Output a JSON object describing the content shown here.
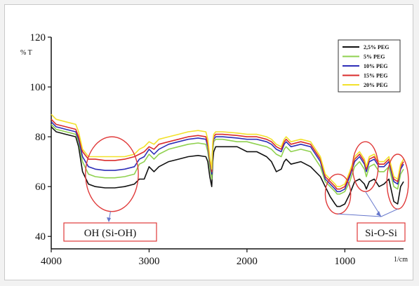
{
  "chart_data": {
    "type": "line",
    "xlabel": "1/cm",
    "ylabel": "% T",
    "xlim": [
      4000,
      400
    ],
    "ylim": [
      35,
      120
    ],
    "x_ticks": [
      "4000",
      "3000",
      "2000",
      "1000"
    ],
    "y_ticks": [
      "120",
      "100",
      "80",
      "60",
      "40"
    ],
    "legend_position": "top-right",
    "series": [
      {
        "name": "2,5% PEG",
        "color": "#111111",
        "x": [
          4000,
          3950,
          3850,
          3750,
          3720,
          3680,
          3620,
          3550,
          3450,
          3350,
          3250,
          3150,
          3100,
          3050,
          3000,
          2950,
          2900,
          2800,
          2700,
          2600,
          2500,
          2420,
          2400,
          2380,
          2360,
          2350,
          2340,
          2320,
          2300,
          2250,
          2100,
          2000,
          1900,
          1800,
          1750,
          1700,
          1650,
          1620,
          1600,
          1550,
          1450,
          1350,
          1250,
          1200,
          1150,
          1100,
          1080,
          1050,
          1000,
          950,
          900,
          850,
          800,
          780,
          750,
          700,
          650,
          600,
          550,
          500,
          460,
          430,
          400
        ],
        "y": [
          84,
          82,
          81,
          80,
          76,
          66,
          61,
          60,
          59.5,
          59.5,
          60,
          61,
          63,
          63,
          68,
          66,
          68,
          70,
          71,
          72,
          72.5,
          72,
          70,
          64,
          60,
          70,
          74,
          76,
          76,
          76,
          76,
          74,
          74,
          72,
          70,
          66,
          67,
          70,
          71,
          69,
          70,
          68,
          64,
          60,
          56,
          53,
          52,
          52,
          53,
          57,
          62,
          63,
          61,
          59,
          62,
          63,
          60,
          61,
          63,
          54,
          53,
          60,
          62
        ]
      },
      {
        "name": "5% PEG",
        "color": "#8fd14f",
        "x": [
          4000,
          3950,
          3850,
          3750,
          3720,
          3680,
          3620,
          3550,
          3450,
          3350,
          3250,
          3150,
          3100,
          3050,
          3000,
          2950,
          2900,
          2800,
          2700,
          2600,
          2500,
          2420,
          2400,
          2380,
          2360,
          2350,
          2340,
          2320,
          2300,
          2250,
          2100,
          2000,
          1900,
          1800,
          1750,
          1700,
          1650,
          1620,
          1600,
          1550,
          1450,
          1350,
          1250,
          1200,
          1150,
          1100,
          1080,
          1050,
          1000,
          950,
          900,
          850,
          800,
          780,
          750,
          700,
          650,
          600,
          550,
          500,
          460,
          430,
          400
        ],
        "y": [
          85,
          83,
          82,
          81,
          78,
          70,
          65,
          64,
          63.5,
          63.5,
          64,
          65,
          69,
          70,
          73,
          71,
          73,
          75,
          76,
          77,
          77.5,
          77,
          74,
          68,
          63,
          74,
          78,
          79,
          79,
          79,
          78,
          78,
          77,
          76,
          75,
          73,
          72,
          75,
          76,
          74,
          75,
          74,
          68,
          62,
          60,
          58,
          57,
          57,
          58,
          62,
          68,
          70,
          67,
          64,
          68,
          69,
          66,
          66,
          68,
          60,
          59,
          65,
          67
        ]
      },
      {
        "name": "10% PEG",
        "color": "#2e2eb8",
        "x": [
          4000,
          3950,
          3850,
          3750,
          3720,
          3680,
          3620,
          3550,
          3450,
          3350,
          3250,
          3150,
          3100,
          3050,
          3000,
          2950,
          2900,
          2800,
          2700,
          2600,
          2500,
          2420,
          2400,
          2380,
          2360,
          2350,
          2340,
          2320,
          2300,
          2250,
          2100,
          2000,
          1900,
          1800,
          1750,
          1700,
          1650,
          1620,
          1600,
          1550,
          1450,
          1350,
          1250,
          1200,
          1150,
          1100,
          1080,
          1050,
          1000,
          950,
          900,
          850,
          800,
          780,
          750,
          700,
          650,
          600,
          550,
          500,
          460,
          430,
          400
        ],
        "y": [
          86,
          84,
          83,
          82,
          79,
          72,
          68,
          67,
          66.5,
          66.5,
          67,
          68,
          71,
          72,
          75,
          73,
          75,
          77,
          78,
          79,
          79.5,
          79,
          76,
          70,
          65,
          76,
          79,
          80,
          80,
          80,
          79.5,
          79,
          79,
          78,
          77,
          75,
          74,
          77,
          78,
          76,
          77,
          76,
          70,
          63,
          61,
          59,
          58,
          58,
          59,
          64,
          70,
          72,
          69,
          66,
          70,
          71,
          68,
          68,
          70,
          62,
          61,
          67,
          69
        ]
      },
      {
        "name": "15% PEG",
        "color": "#d92b2b",
        "x": [
          4000,
          3950,
          3850,
          3750,
          3720,
          3680,
          3620,
          3550,
          3450,
          3350,
          3250,
          3150,
          3100,
          3050,
          3000,
          2950,
          2900,
          2800,
          2700,
          2600,
          2500,
          2420,
          2400,
          2380,
          2360,
          2350,
          2340,
          2320,
          2300,
          2250,
          2100,
          2000,
          1900,
          1800,
          1750,
          1700,
          1650,
          1620,
          1600,
          1550,
          1450,
          1350,
          1250,
          1200,
          1150,
          1100,
          1080,
          1050,
          1000,
          950,
          900,
          850,
          800,
          780,
          750,
          700,
          650,
          600,
          550,
          500,
          460,
          430,
          400
        ],
        "y": [
          87,
          85,
          84,
          83,
          80,
          74,
          71,
          71,
          70.5,
          70.5,
          71,
          72,
          73,
          74,
          76,
          75,
          77,
          78,
          79,
          80,
          80.5,
          80,
          77,
          71,
          66,
          77,
          80,
          81,
          81,
          81,
          80.5,
          80,
          80,
          79,
          78,
          76,
          75,
          78,
          79,
          77,
          78,
          77,
          71,
          64,
          62,
          60,
          59,
          59,
          60,
          65,
          71,
          73,
          70,
          67,
          71,
          72,
          69,
          69,
          71,
          63,
          62,
          68,
          70
        ]
      },
      {
        "name": "20% PEG",
        "color": "#f2e12a",
        "x": [
          4000,
          3950,
          3850,
          3750,
          3720,
          3680,
          3620,
          3550,
          3450,
          3350,
          3250,
          3150,
          3100,
          3050,
          3000,
          2950,
          2900,
          2800,
          2700,
          2600,
          2500,
          2420,
          2400,
          2380,
          2360,
          2350,
          2340,
          2320,
          2300,
          2250,
          2100,
          2000,
          1900,
          1800,
          1750,
          1700,
          1650,
          1620,
          1600,
          1550,
          1450,
          1350,
          1250,
          1200,
          1150,
          1100,
          1080,
          1050,
          1000,
          950,
          900,
          850,
          800,
          780,
          750,
          700,
          650,
          600,
          550,
          500,
          460,
          430,
          400
        ],
        "y": [
          89,
          87,
          86,
          85,
          82,
          75,
          72,
          72,
          72,
          72,
          72,
          73,
          75,
          76,
          78,
          77,
          79,
          80,
          81,
          82,
          82.5,
          82,
          79,
          72,
          67,
          78,
          81,
          82,
          82,
          82,
          81.5,
          81,
          81,
          80,
          79,
          77,
          76,
          79,
          80,
          78,
          79,
          78,
          72,
          65,
          63,
          61,
          60,
          60,
          61,
          66,
          72,
          74,
          71,
          68,
          72,
          73,
          70,
          70,
          72,
          64,
          63,
          69,
          71
        ]
      }
    ],
    "annotations": [
      {
        "label": "OH (Si-OH)",
        "ellipses": [
          {
            "cx": 3380,
            "cy": 65,
            "rx": 270,
            "ry": 15
          }
        ]
      },
      {
        "label": "Si-O-Si",
        "ellipses": [
          {
            "cx": 1070,
            "cy": 57,
            "rx": 130,
            "ry": 8
          },
          {
            "cx": 790,
            "cy": 68,
            "rx": 130,
            "ry": 10
          },
          {
            "cx": 460,
            "cy": 62,
            "rx": 110,
            "ry": 11
          }
        ]
      }
    ]
  }
}
